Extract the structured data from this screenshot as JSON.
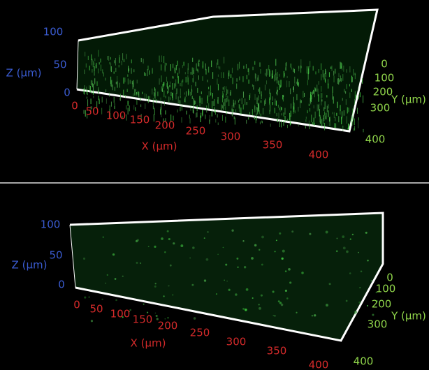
{
  "panels": [
    {
      "z_label": "Z (µm)",
      "z_ticks": [
        100,
        50,
        0
      ],
      "x_label": "X (µm)",
      "x_ticks": [
        0,
        50,
        100,
        150,
        200,
        250,
        300,
        350,
        400
      ],
      "y_label": "Y (µm)",
      "y_ticks": [
        0,
        100,
        200,
        300,
        400
      ]
    },
    {
      "z_label": "Z (µm)",
      "z_ticks": [
        100,
        50,
        0
      ],
      "x_label": "X (µm)",
      "x_ticks": [
        0,
        50,
        100,
        150,
        200,
        250,
        300,
        350,
        400
      ],
      "y_label": "Y (µm)",
      "y_ticks": [
        0,
        100,
        200,
        300,
        400
      ]
    }
  ]
}
